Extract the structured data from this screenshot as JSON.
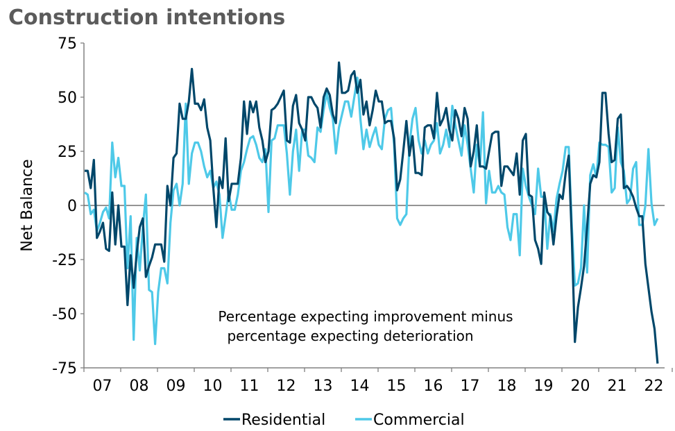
{
  "chart_data": {
    "type": "line",
    "title": "Construction intentions",
    "ylabel": "Net Balance",
    "xlabel": "",
    "ylim": [
      -75,
      75
    ],
    "yticks": [
      75,
      50,
      25,
      0,
      -25,
      -50,
      -75
    ],
    "ytick_labels": [
      "75",
      "50",
      "25",
      "0",
      "-25",
      "-50",
      "-75"
    ],
    "xtick_labels": [
      "07",
      "08",
      "09",
      "10",
      "11",
      "12",
      "13",
      "14",
      "15",
      "16",
      "17",
      "18",
      "19",
      "20",
      "21",
      "22"
    ],
    "frequency": "monthly",
    "annotation": [
      "Percentage expecting improvement minus",
      "percentage expecting deterioration"
    ],
    "legend_placement": "bottom",
    "grid": false,
    "series": [
      {
        "name": "Residential",
        "color": "#00476a",
        "values": {
          "2007": [
            16,
            16,
            8,
            21,
            -15,
            -12,
            -8,
            -20,
            -21,
            6,
            -18,
            0
          ],
          "2008": [
            -19,
            -19,
            -46,
            -23,
            -38,
            -22,
            -10,
            -6,
            -33,
            -28,
            -24,
            -18
          ],
          "2009": [
            -18,
            -18,
            -26,
            9,
            0,
            22,
            24,
            47,
            40,
            40,
            48,
            63
          ],
          "2010": [
            47,
            47,
            44,
            49,
            36,
            30,
            8,
            -10,
            13,
            8,
            31,
            2
          ],
          "2011": [
            10,
            10,
            10,
            22,
            48,
            33,
            48,
            43,
            48,
            36,
            30,
            20
          ],
          "2012": [
            25,
            44,
            45,
            47,
            50,
            53,
            30,
            29,
            46,
            51,
            38,
            35
          ],
          "2013": [
            30,
            50,
            50,
            47,
            45,
            36,
            50,
            54,
            51,
            42,
            38,
            66
          ],
          "2014": [
            52,
            52,
            53,
            60,
            62,
            52,
            58,
            42,
            48,
            37,
            44,
            53
          ],
          "2015": [
            48,
            48,
            38,
            39,
            39,
            31,
            7,
            12,
            25,
            39,
            23,
            32
          ],
          "2016": [
            15,
            15,
            14,
            36,
            37,
            37,
            31,
            52,
            37,
            40,
            45,
            35
          ],
          "2017": [
            30,
            44,
            40,
            32,
            45,
            40,
            18,
            25,
            37,
            18,
            18,
            17
          ],
          "2018": [
            25,
            33,
            34,
            34,
            9,
            18,
            18,
            16,
            14,
            24,
            5,
            30
          ],
          "2019": [
            33,
            5,
            4,
            -16,
            -20,
            -27,
            6,
            -3,
            -5,
            -18,
            -5,
            5
          ],
          "2020": [
            3,
            15,
            23,
            -15,
            -63,
            -47,
            -38,
            -28,
            -10,
            10,
            14,
            13
          ],
          "2021": [
            20,
            52,
            52,
            33,
            20,
            21,
            40,
            42,
            8,
            9,
            7,
            4
          ],
          "2022": [
            -1,
            -5,
            -5,
            -27,
            -38,
            -49,
            -57,
            -73
          ]
        }
      },
      {
        "name": "Commercial",
        "color": "#4ec9e8",
        "values": {
          "2007": [
            6,
            5,
            -4,
            -2,
            -12,
            -8,
            -3,
            -1,
            -6,
            29,
            13,
            22
          ],
          "2008": [
            9,
            9,
            -29,
            -5,
            -62,
            -15,
            -30,
            -10,
            5,
            -39,
            -40,
            -64
          ],
          "2009": [
            -40,
            -29,
            -29,
            -36,
            -8,
            7,
            10,
            0,
            10,
            47,
            10,
            24
          ],
          "2010": [
            29,
            29,
            25,
            18,
            13,
            16,
            8,
            11,
            5,
            -15,
            -5,
            6
          ],
          "2011": [
            -2,
            -2,
            5,
            16,
            20,
            26,
            31,
            32,
            28,
            22,
            20,
            26
          ],
          "2012": [
            -3,
            30,
            31,
            37,
            37,
            37,
            24,
            5,
            25,
            35,
            16,
            35
          ],
          "2013": [
            35,
            23,
            22,
            20,
            36,
            34,
            44,
            52,
            45,
            40,
            24,
            36
          ],
          "2014": [
            42,
            48,
            48,
            41,
            50,
            59,
            40,
            26,
            35,
            27,
            32,
            36
          ],
          "2015": [
            28,
            26,
            40,
            44,
            45,
            28,
            -6,
            -9,
            -6,
            -4,
            28,
            40
          ],
          "2016": [
            45,
            30,
            24,
            30,
            24,
            28,
            30,
            38,
            24,
            28,
            35,
            27
          ],
          "2017": [
            46,
            37,
            30,
            23,
            37,
            28,
            17,
            6,
            28,
            18,
            43,
            1
          ],
          "2018": [
            16,
            6,
            6,
            9,
            6,
            5,
            -10,
            -16,
            -4,
            -4,
            -23,
            17
          ],
          "2019": [
            9,
            4,
            0,
            -4,
            17,
            4,
            4,
            -20,
            -4,
            -12,
            3,
            10
          ],
          "2020": [
            16,
            27,
            27,
            -10,
            -37,
            -36,
            -29,
            0,
            -31,
            14,
            19,
            13
          ],
          "2021": [
            29,
            28,
            28,
            27,
            6,
            8,
            36,
            20,
            16,
            1,
            3,
            17
          ],
          "2022": [
            20,
            -9,
            -9,
            0,
            26,
            1,
            -9,
            -6
          ]
        }
      }
    ]
  }
}
